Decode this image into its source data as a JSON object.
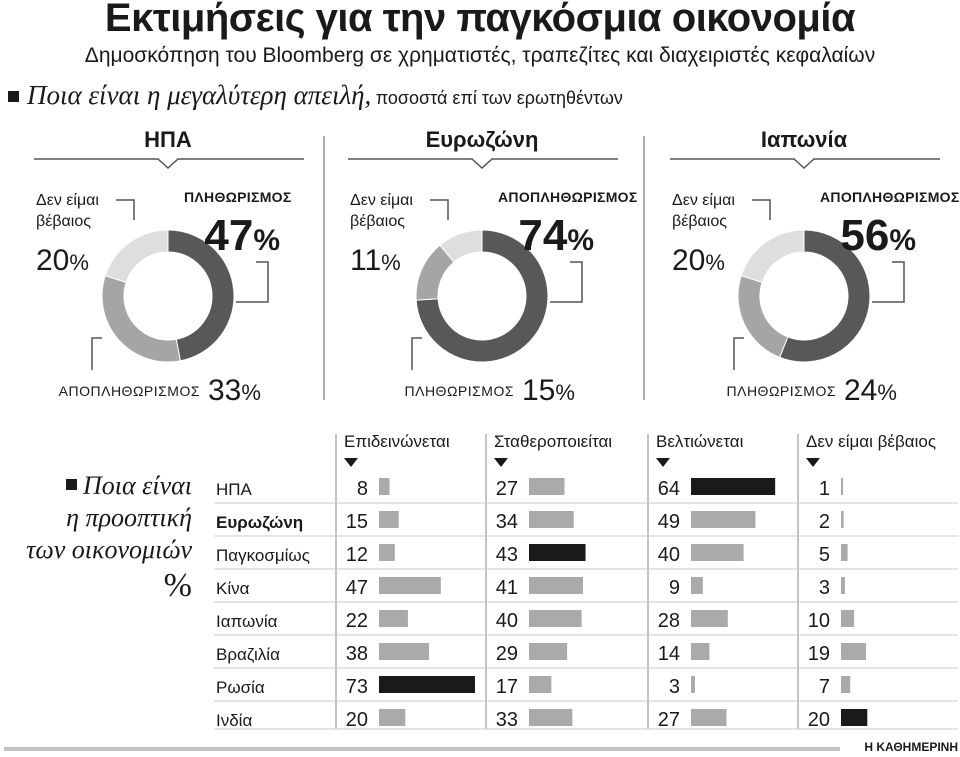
{
  "title": "Εκτιμήσεις για την παγκόσμια οικονομία",
  "subtitle": "Δημοσκόπηση του Bloomberg σε χρηματιστές, τραπεζίτες και διαχειριστές κεφαλαίων",
  "question1": {
    "text": "Ποια είναι η μεγαλύτερη απειλή,",
    "note": "ποσοστά επί των ερωτηθέντων"
  },
  "question2": {
    "lines": [
      "Ποια είναι",
      "η προοπτική",
      "των οικονομιών"
    ],
    "unit": "%"
  },
  "brand": "Η ΚΑΘΗΜΕΡΙΝΗ",
  "colors": {
    "dark": "#585858",
    "mid": "#a5a5a5",
    "light": "#dedede",
    "bar": "#aaaaaa",
    "bar_max": "#1a1a1a"
  },
  "chart_data": [
    {
      "type": "pie",
      "title": "ΗΠΑ",
      "slices": [
        {
          "label": "ΠΛΗΘΩΡΙΣΜΟΣ",
          "value": 47,
          "display": "47%",
          "tone": "dark"
        },
        {
          "label": "ΑΠΟΠΛΗΘΩΡΙΣΜΟΣ",
          "value": 33,
          "display": "33%",
          "tone": "mid"
        },
        {
          "label": "Δεν είμαι βέβαιος",
          "value": 20,
          "display": "20%",
          "tone": "light"
        }
      ]
    },
    {
      "type": "pie",
      "title": "Ευρωζώνη",
      "slices": [
        {
          "label": "ΑΠΟΠΛΗΘΩΡΙΣΜΟΣ",
          "value": 74,
          "display": "74%",
          "tone": "dark"
        },
        {
          "label": "ΠΛΗΘΩΡΙΣΜΟΣ",
          "value": 15,
          "display": "15%",
          "tone": "mid"
        },
        {
          "label": "Δεν είμαι βέβαιος",
          "value": 11,
          "display": "11%",
          "tone": "light"
        }
      ]
    },
    {
      "type": "pie",
      "title": "Ιαπωνία",
      "slices": [
        {
          "label": "ΑΠΟΠΛΗΘΩΡΙΣΜΟΣ",
          "value": 56,
          "display": "56%",
          "tone": "dark"
        },
        {
          "label": "ΠΛΗΘΩΡΙΣΜΟΣ",
          "value": 24,
          "display": "24%",
          "tone": "mid"
        },
        {
          "label": "Δεν είμαι βέβαιος",
          "value": 20,
          "display": "20%",
          "tone": "light"
        }
      ]
    },
    {
      "type": "bar",
      "title": "Ποια είναι η προοπτική των οικονομιών %",
      "categories": [
        "ΗΠΑ",
        "Ευρωζώνη",
        "Παγκοσμίως",
        "Κίνα",
        "Ιαπωνία",
        "Βραζιλία",
        "Ρωσία",
        "Ινδία"
      ],
      "highlight_category": "Ευρωζώνη",
      "series": [
        {
          "name": "Επιδεινώνεται",
          "values": [
            8,
            15,
            12,
            47,
            22,
            38,
            73,
            20
          ]
        },
        {
          "name": "Σταθεροποιείται",
          "values": [
            27,
            34,
            43,
            41,
            40,
            29,
            17,
            33
          ]
        },
        {
          "name": "Βελτιώνεται",
          "values": [
            64,
            49,
            40,
            9,
            28,
            14,
            3,
            27
          ]
        },
        {
          "name": "Δεν είμαι βέβαιος",
          "values": [
            1,
            2,
            5,
            3,
            10,
            19,
            7,
            20
          ]
        }
      ]
    }
  ]
}
